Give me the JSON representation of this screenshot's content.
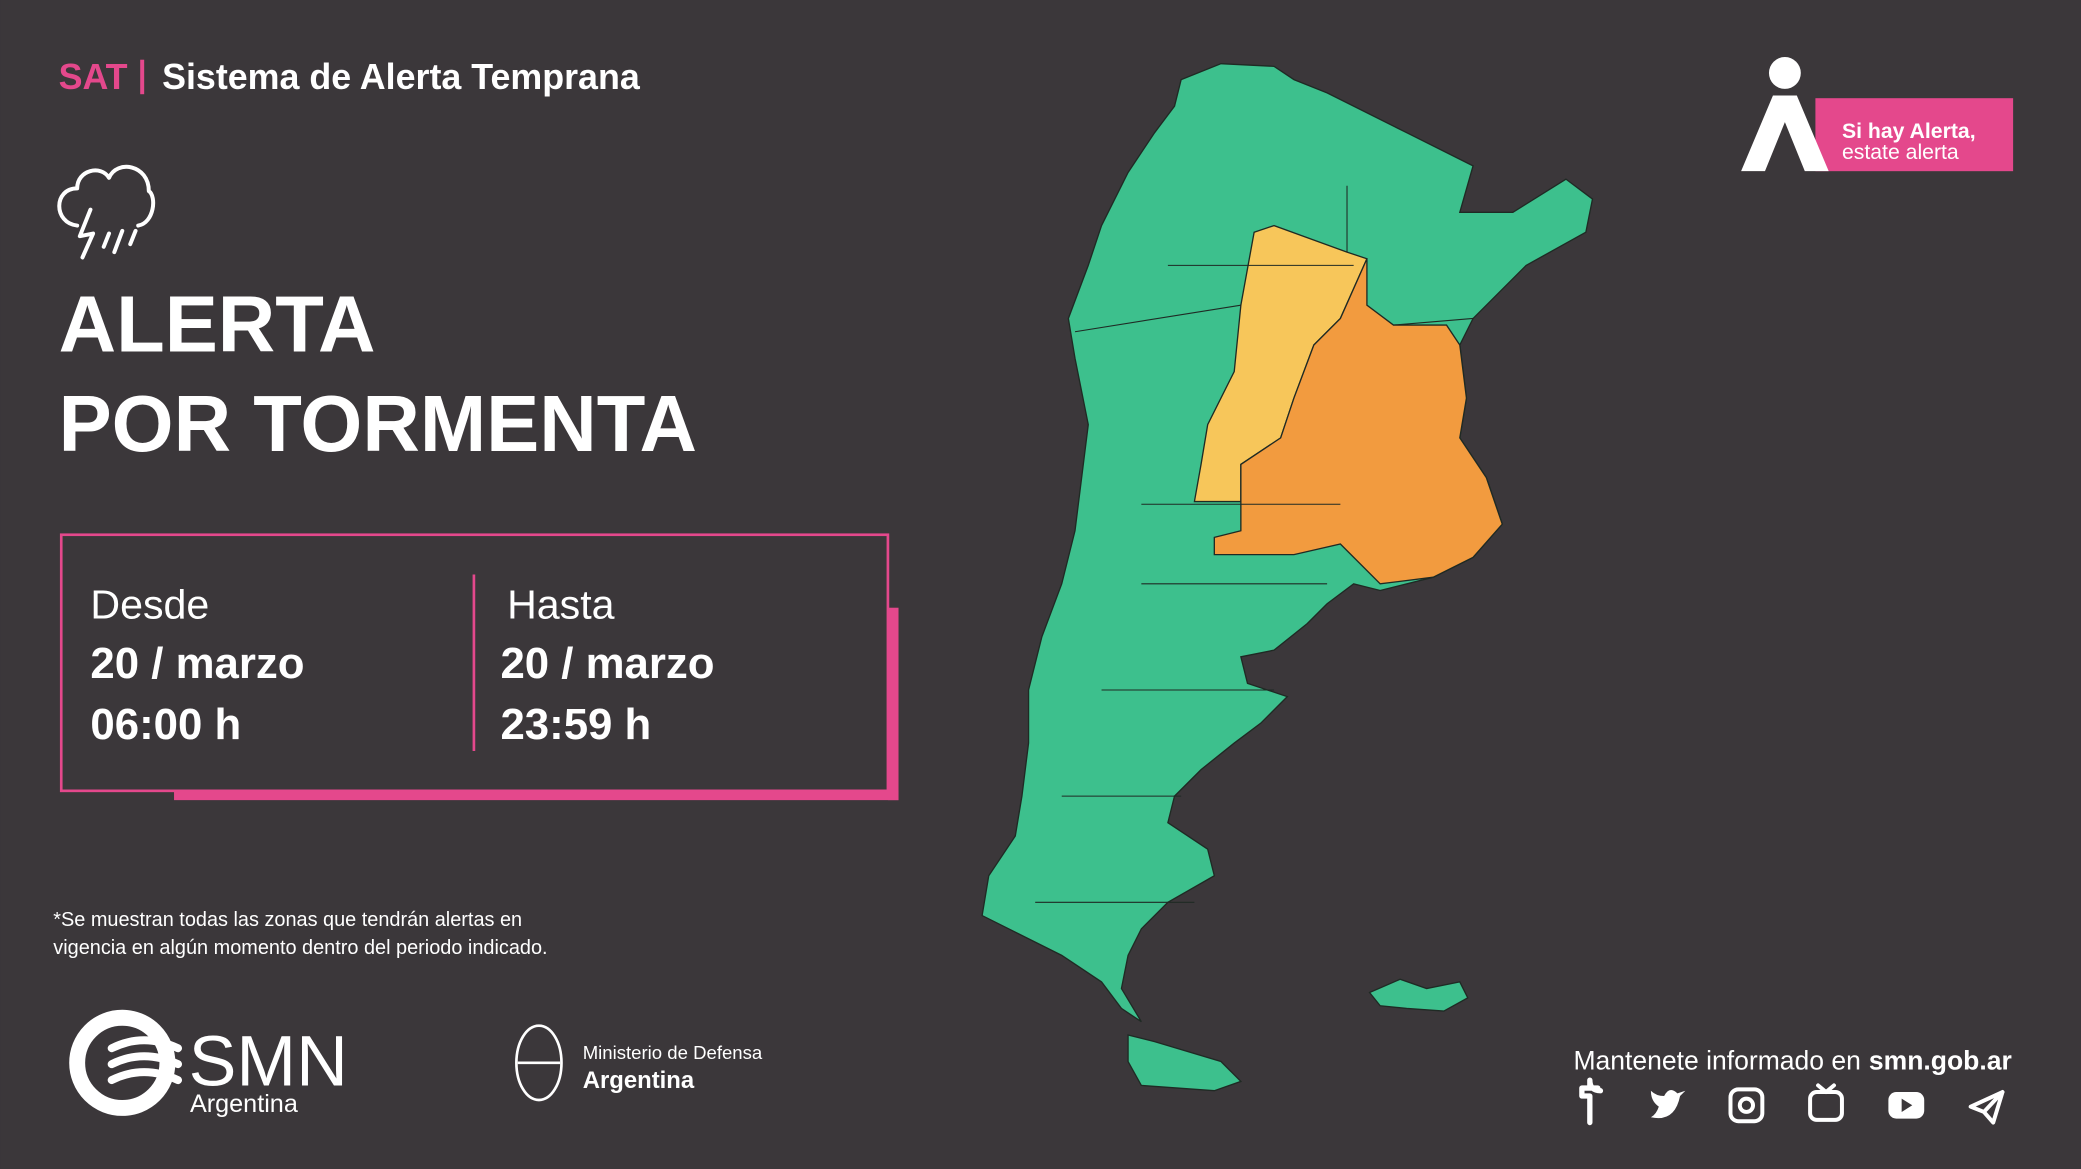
{
  "header": {
    "sat": "SAT",
    "title": "Sistema de Alerta Temprana"
  },
  "alert": {
    "line1": "ALERTA",
    "line2": "POR TORMENTA"
  },
  "period": {
    "from": {
      "label": "Desde",
      "date": "20 / marzo",
      "time": "06:00 h"
    },
    "to": {
      "label": "Hasta",
      "date": "20 / marzo",
      "time": "23:59 h"
    }
  },
  "note": [
    "*Se muestran todas las zonas que tendrán alertas en",
    "vigencia en algún momento dentro del periodo indicado."
  ],
  "badge": {
    "line1": "Si hay Alerta,",
    "line2": "estate alerta"
  },
  "logo": {
    "name": "SMN",
    "country": "Argentina"
  },
  "ministry": {
    "name": "Ministerio de Defensa",
    "country": "Argentina"
  },
  "footer": {
    "text": "Mantenete informado en",
    "link": "smn.gob.ar"
  }
}
